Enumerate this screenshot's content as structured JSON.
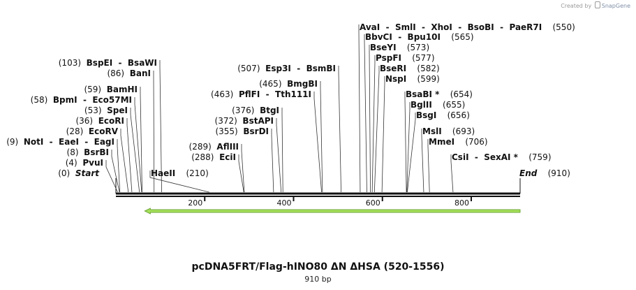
{
  "header": {
    "created_by": "Created by",
    "brand": "SnapGene"
  },
  "plasmid": {
    "name": "pcDNA5FRT/Flag-hINO80 ΔN ΔHSA (520-1556)",
    "length_label": "910 bp",
    "length": 910
  },
  "axis": {
    "ticks": [
      {
        "value": 200,
        "label": "200"
      },
      {
        "value": 400,
        "label": "400"
      },
      {
        "value": 600,
        "label": "600"
      },
      {
        "value": 800,
        "label": "800"
      }
    ]
  },
  "feature": {
    "name": "orf-arrow",
    "start": 65,
    "end": 910,
    "direction": "reverse",
    "color": "#a6e05a",
    "stroke": "#6fa83a"
  },
  "sites": [
    {
      "pos": "(0)",
      "names": [
        "Start"
      ],
      "italic": true,
      "site": 0
    },
    {
      "pos": "(4)",
      "names": [
        "PvuI"
      ],
      "site": 4
    },
    {
      "pos": "(8)",
      "names": [
        "BsrBI"
      ],
      "site": 8
    },
    {
      "pos": "(9)",
      "names": [
        "NotI",
        "EaeI",
        "EagI"
      ],
      "site": 9
    },
    {
      "pos": "(28)",
      "names": [
        "EcoRV"
      ],
      "site": 28
    },
    {
      "pos": "(36)",
      "names": [
        "EcoRI"
      ],
      "site": 36
    },
    {
      "pos": "(53)",
      "names": [
        "SpeI"
      ],
      "site": 53
    },
    {
      "pos": "(58)",
      "names": [
        "BpmI",
        "Eco57MI"
      ],
      "site": 58
    },
    {
      "pos": "(59)",
      "names": [
        "BamHI"
      ],
      "site": 59
    },
    {
      "pos": "(86)",
      "names": [
        "BanI"
      ],
      "site": 86
    },
    {
      "pos": "(103)",
      "names": [
        "BspEI",
        "BsaWI"
      ],
      "site": 103
    },
    {
      "pos": "(210)",
      "names": [
        "HaeII"
      ],
      "site": 210
    },
    {
      "pos": "(288)",
      "names": [
        "EciI"
      ],
      "site": 288
    },
    {
      "pos": "(289)",
      "names": [
        "AflIII"
      ],
      "site": 289
    },
    {
      "pos": "(355)",
      "names": [
        "BsrDI"
      ],
      "site": 355
    },
    {
      "pos": "(372)",
      "names": [
        "BstAPI"
      ],
      "site": 372
    },
    {
      "pos": "(376)",
      "names": [
        "BtgI"
      ],
      "site": 376
    },
    {
      "pos": "(463)",
      "names": [
        "PflFI",
        "Tth111I"
      ],
      "site": 463
    },
    {
      "pos": "(465)",
      "names": [
        "BmgBI"
      ],
      "site": 465
    },
    {
      "pos": "(507)",
      "names": [
        "Esp3I",
        "BsmBI"
      ],
      "site": 507
    },
    {
      "pos": "(550)",
      "names": [
        "AvaI",
        "SmlI",
        "XhoI",
        "BsoBI",
        "PaeR7I"
      ],
      "site": 550
    },
    {
      "pos": "(565)",
      "names": [
        "BbvCI",
        "Bpu10I"
      ],
      "site": 565
    },
    {
      "pos": "(573)",
      "names": [
        "BseYI"
      ],
      "site": 573
    },
    {
      "pos": "(577)",
      "names": [
        "PspFI"
      ],
      "site": 577
    },
    {
      "pos": "(582)",
      "names": [
        "BseRI"
      ],
      "site": 582
    },
    {
      "pos": "(599)",
      "names": [
        "NspI"
      ],
      "site": 599
    },
    {
      "pos": "(654)",
      "names": [
        "BsaBI *"
      ],
      "site": 654
    },
    {
      "pos": "(655)",
      "names": [
        "BglII"
      ],
      "site": 655
    },
    {
      "pos": "(656)",
      "names": [
        "BsgI"
      ],
      "site": 656
    },
    {
      "pos": "(693)",
      "names": [
        "MslI"
      ],
      "site": 693
    },
    {
      "pos": "(706)",
      "names": [
        "MmeI"
      ],
      "site": 706
    },
    {
      "pos": "(759)",
      "names": [
        "CsiI",
        "SexAI *"
      ],
      "site": 759
    },
    {
      "pos": "(910)",
      "names": [
        "End"
      ],
      "italic": true,
      "site": 910
    }
  ]
}
